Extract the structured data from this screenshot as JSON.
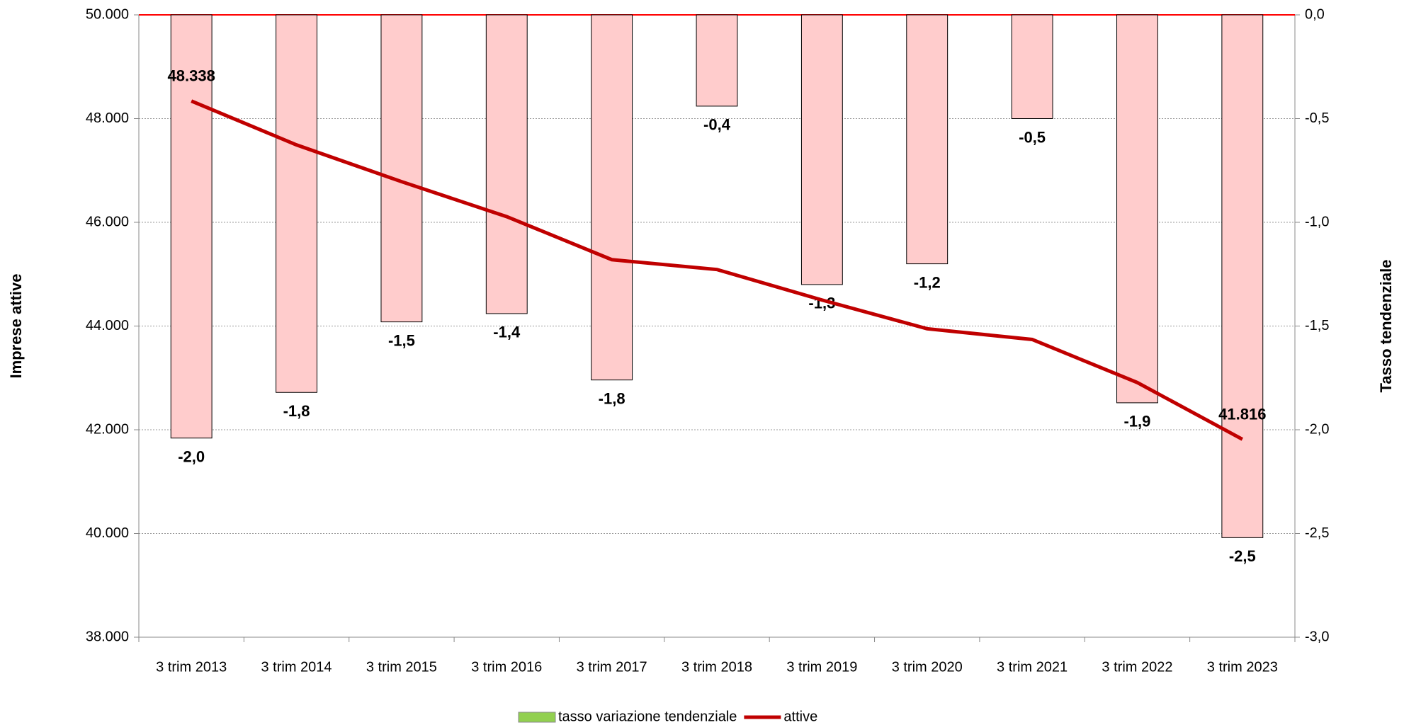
{
  "chart_data": {
    "type": "bar",
    "categories": [
      "3 trim 2013",
      "3 trim 2014",
      "3 trim 2015",
      "3 trim 2016",
      "3 trim 2017",
      "3 trim 2018",
      "3 trim 2019",
      "3 trim 2020",
      "3 trim 2021",
      "3 trim 2022",
      "3 trim 2023"
    ],
    "series": [
      {
        "name": "tasso variazione tendenziale",
        "type": "bar",
        "axis": "y2",
        "color": "#ffcccc",
        "legend_color": "#92d050",
        "label_color": "#ff0000",
        "values": [
          -2.04,
          -1.82,
          -1.48,
          -1.44,
          -1.76,
          -0.44,
          -1.3,
          -1.2,
          -0.5,
          -1.87,
          -2.52
        ],
        "value_labels": [
          "-2,0",
          "-1,8",
          "-1,5",
          "-1,4",
          "-1,8",
          "-0,4",
          "-1,3",
          "-1,2",
          "-0,5",
          "-1,9",
          "-2,5"
        ]
      },
      {
        "name": "attive",
        "type": "line",
        "axis": "y",
        "color": "#c00000",
        "label_color": "#c00000",
        "values": [
          48338,
          47493,
          46784,
          46110,
          45280,
          45090,
          44502,
          43948,
          43741,
          42911,
          41816
        ],
        "value_labels": [
          "48.338",
          null,
          null,
          null,
          null,
          null,
          null,
          null,
          null,
          null,
          "41.816"
        ]
      }
    ],
    "y_label": "Imprese attive",
    "y_label_color": "#c00000",
    "y2_label": "Tasso tendenziale",
    "y2_label_color": "#00b050",
    "ylim": [
      38000,
      50000
    ],
    "yticks": [
      {
        "value": 38000,
        "label": "38.000"
      },
      {
        "value": 40000,
        "label": "40.000"
      },
      {
        "value": 42000,
        "label": "42.000"
      },
      {
        "value": 44000,
        "label": "44.000"
      },
      {
        "value": 46000,
        "label": "46.000"
      },
      {
        "value": 48000,
        "label": "48.000"
      },
      {
        "value": 50000,
        "label": "50.000"
      }
    ],
    "y2lim": [
      -3,
      0
    ],
    "y2ticks": [
      {
        "value": -3,
        "label": "-3,0"
      },
      {
        "value": -2.5,
        "label": "-2,5"
      },
      {
        "value": -2,
        "label": "-2,0"
      },
      {
        "value": -1.5,
        "label": "-1,5"
      },
      {
        "value": -1,
        "label": "-1,0"
      },
      {
        "value": -0.5,
        "label": "-0,5"
      },
      {
        "value": 0,
        "label": "0,0"
      }
    ],
    "grid": true,
    "legend": "bottom"
  }
}
